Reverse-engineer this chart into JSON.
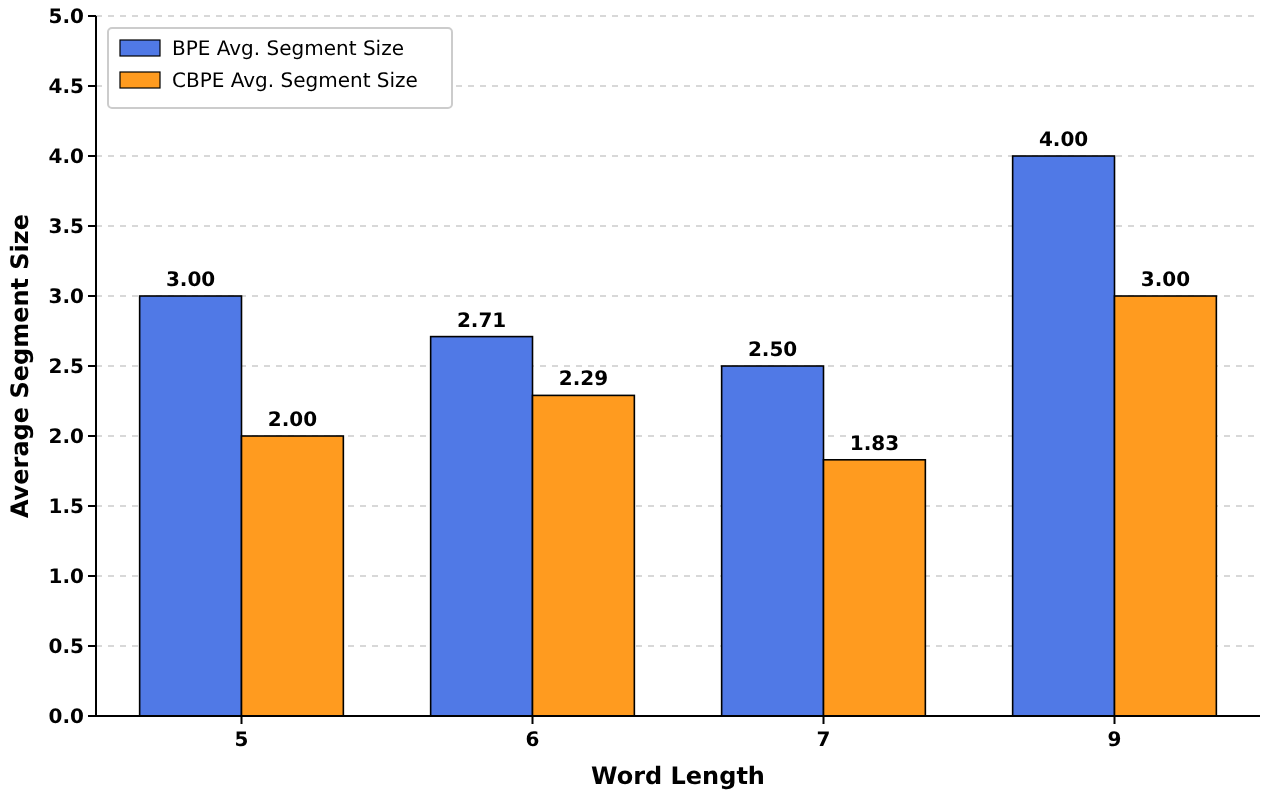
{
  "chart_data": {
    "type": "bar",
    "xlabel": "Word Length",
    "ylabel": "Average Segment Size",
    "categories": [
      "5",
      "6",
      "7",
      "9"
    ],
    "series": [
      {
        "name": "BPE Avg. Segment Size",
        "color": "#5079e6",
        "values": [
          3.0,
          2.71,
          2.5,
          4.0
        ],
        "value_labels": [
          "3.00",
          "2.71",
          "2.50",
          "4.00"
        ]
      },
      {
        "name": "CBPE Avg. Segment Size",
        "color": "#ff9b1f",
        "values": [
          2.0,
          2.29,
          1.83,
          3.0
        ],
        "value_labels": [
          "2.00",
          "2.29",
          "1.83",
          "3.00"
        ]
      }
    ],
    "ylim": [
      0,
      5
    ],
    "yticks": [
      {
        "value": 0,
        "label": "0.0"
      },
      {
        "value": 0.5,
        "label": "0.5"
      },
      {
        "value": 1,
        "label": "1.0"
      },
      {
        "value": 1.5,
        "label": "1.5"
      },
      {
        "value": 2,
        "label": "2.0"
      },
      {
        "value": 2.5,
        "label": "2.5"
      },
      {
        "value": 3,
        "label": "3.0"
      },
      {
        "value": 3.5,
        "label": "3.5"
      },
      {
        "value": 4,
        "label": "4.0"
      },
      {
        "value": 4.5,
        "label": "4.5"
      },
      {
        "value": 5,
        "label": "5.0"
      }
    ],
    "grid": "y",
    "legend": "top left"
  }
}
